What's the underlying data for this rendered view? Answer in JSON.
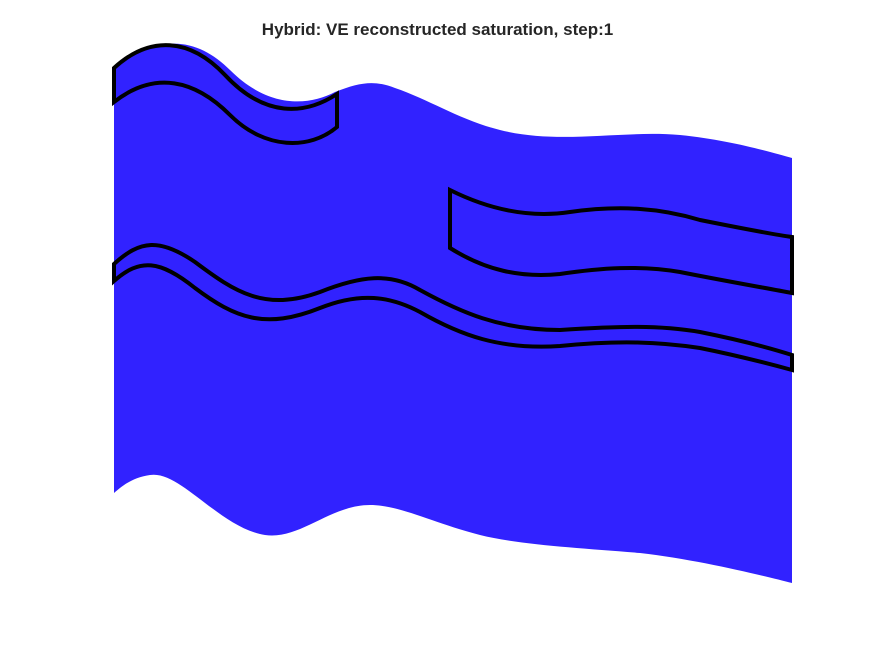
{
  "figure": {
    "title": "Hybrid: VE reconstructed saturation, step:1"
  },
  "colors": {
    "saturation_fill": "#3122ff",
    "region_outline": "#000000",
    "background": "#ffffff",
    "title_text": "#262626"
  },
  "layers": [
    {
      "name": "saturation-domain",
      "kind": "filled-region"
    },
    {
      "name": "upper-left-layer",
      "kind": "outlined-region"
    },
    {
      "name": "right-block",
      "kind": "outlined-region"
    },
    {
      "name": "thin-middle-layer",
      "kind": "outlined-region"
    }
  ]
}
